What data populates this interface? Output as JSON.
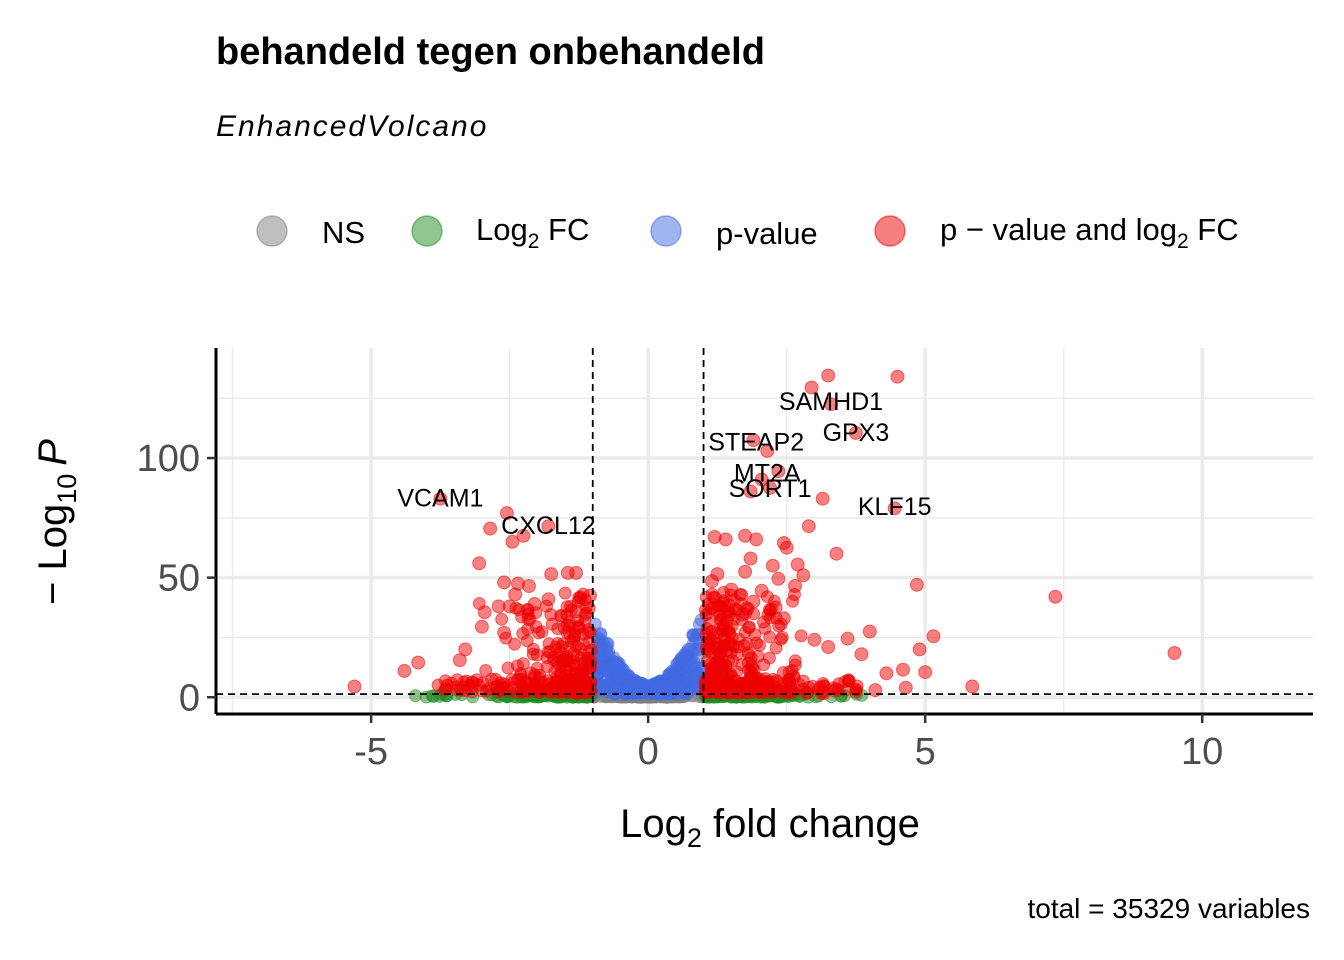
{
  "chart_data": {
    "type": "scatter",
    "title": "behandeld tegen onbehandeld",
    "subtitle": "EnhancedVolcano",
    "caption": "total = 35329 variables",
    "xlabel": {
      "main": "Log",
      "sub": "2",
      "rest": " fold change"
    },
    "ylabel": {
      "prefix": "− Log",
      "sub": "10",
      "italic": "P"
    },
    "xlim": [
      -7.8,
      12.0
    ],
    "ylim": [
      -7,
      146
    ],
    "xticks": [
      -5,
      0,
      5,
      10
    ],
    "xtick_labels": [
      "-5",
      "0",
      "5",
      "10"
    ],
    "yticks": [
      0,
      50,
      100
    ],
    "ytick_labels": [
      "0",
      "50",
      "100"
    ],
    "grid": true,
    "fc_cutoff": 1,
    "p_cutoff_neglog10": 1.3,
    "legend_position": "top",
    "legend": [
      {
        "key": "NS",
        "label_main": "NS",
        "label_sub": "",
        "label_rest": "",
        "color": "#808080"
      },
      {
        "key": "FC",
        "label_main": "Log",
        "label_sub": "2",
        "label_rest": " FC",
        "color": "#228B22"
      },
      {
        "key": "P",
        "label_main": "p-value",
        "label_sub": "",
        "label_rest": "",
        "color": "#4169E1"
      },
      {
        "key": "PFC",
        "label_main": "p − value and log",
        "label_sub": "2",
        "label_rest": " FC",
        "color": "#EE0000"
      }
    ],
    "colors": {
      "NS": "#808080",
      "FC": "#228B22",
      "P": "#4169E1",
      "PFC": "#EE0000"
    },
    "labeled_genes": [
      {
        "gene": "SAMHD1",
        "x": 3.3,
        "y": 123.5
      },
      {
        "gene": "GPX3",
        "x": 3.75,
        "y": 110.5
      },
      {
        "gene": "STEAP2",
        "x": 1.95,
        "y": 106.5
      },
      {
        "gene": "MT2A",
        "x": 2.15,
        "y": 93.5
      },
      {
        "gene": "SORT1",
        "x": 2.2,
        "y": 87.0
      },
      {
        "gene": "KLF15",
        "x": 4.45,
        "y": 79.5
      },
      {
        "gene": "VCAM1",
        "x": -3.75,
        "y": 83.0
      },
      {
        "gene": "CXCL12",
        "x": -1.8,
        "y": 71.5
      }
    ],
    "outlier_points": [
      [
        3.25,
        134.5
      ],
      [
        4.5,
        134.0
      ],
      [
        3.3,
        122.5
      ],
      [
        2.95,
        129.5
      ],
      [
        3.75,
        110.5
      ],
      [
        1.9,
        107.5
      ],
      [
        2.15,
        103.0
      ],
      [
        2.35,
        94.5
      ],
      [
        2.05,
        91.0
      ],
      [
        1.85,
        86.0
      ],
      [
        2.2,
        87.5
      ],
      [
        3.15,
        83.0
      ],
      [
        4.45,
        79.0
      ],
      [
        2.9,
        71.5
      ],
      [
        3.4,
        60.0
      ],
      [
        4.85,
        47.0
      ],
      [
        7.35,
        42.0
      ],
      [
        9.5,
        18.5
      ],
      [
        4.0,
        27.5
      ],
      [
        5.15,
        25.5
      ],
      [
        4.9,
        20.0
      ],
      [
        5.0,
        10.5
      ],
      [
        5.85,
        4.5
      ],
      [
        -5.3,
        4.5
      ],
      [
        -4.4,
        11.0
      ],
      [
        -4.15,
        14.5
      ],
      [
        -3.75,
        83.0
      ],
      [
        -2.55,
        77.0
      ],
      [
        -2.85,
        70.5
      ],
      [
        -2.45,
        65.0
      ],
      [
        -2.25,
        67.5
      ],
      [
        -1.8,
        71.5
      ],
      [
        -3.05,
        56.0
      ],
      [
        -1.3,
        52.0
      ],
      [
        -1.45,
        52.0
      ],
      [
        -1.75,
        51.5
      ],
      [
        -2.6,
        48.0
      ],
      [
        -2.35,
        47.5
      ],
      [
        -2.15,
        46.5
      ],
      [
        -2.4,
        43.0
      ],
      [
        -2.5,
        38.0
      ],
      [
        -2.05,
        39.0
      ],
      [
        -1.8,
        41.0
      ],
      [
        -2.7,
        38.0
      ],
      [
        -2.95,
        35.5
      ],
      [
        -1.05,
        42.5
      ],
      [
        -1.3,
        36.0
      ],
      [
        -3.3,
        20.0
      ],
      [
        -3.0,
        29.5
      ],
      [
        -2.6,
        27.0
      ],
      [
        -3.4,
        15.5
      ],
      [
        1.2,
        67.0
      ],
      [
        1.4,
        66.0
      ],
      [
        1.75,
        67.5
      ],
      [
        1.95,
        66.0
      ],
      [
        1.85,
        58.0
      ],
      [
        2.45,
        64.5
      ],
      [
        2.5,
        62.5
      ],
      [
        2.25,
        55.0
      ],
      [
        2.7,
        55.5
      ],
      [
        2.8,
        51.0
      ],
      [
        1.75,
        52.5
      ],
      [
        2.35,
        49.5
      ],
      [
        1.25,
        51.5
      ],
      [
        1.15,
        48.5
      ],
      [
        1.5,
        45.0
      ],
      [
        2.65,
        46.5
      ],
      [
        2.05,
        44.5
      ],
      [
        1.9,
        40.0
      ],
      [
        1.45,
        38.5
      ],
      [
        2.3,
        37.5
      ],
      [
        1.7,
        34.5
      ],
      [
        2.45,
        33.0
      ],
      [
        3.0,
        24.0
      ],
      [
        3.25,
        21.0
      ],
      [
        3.6,
        24.5
      ],
      [
        3.85,
        18.0
      ],
      [
        4.6,
        11.5
      ],
      [
        4.65,
        4.0
      ],
      [
        4.3,
        10.0
      ],
      [
        4.1,
        3.0
      ]
    ]
  }
}
